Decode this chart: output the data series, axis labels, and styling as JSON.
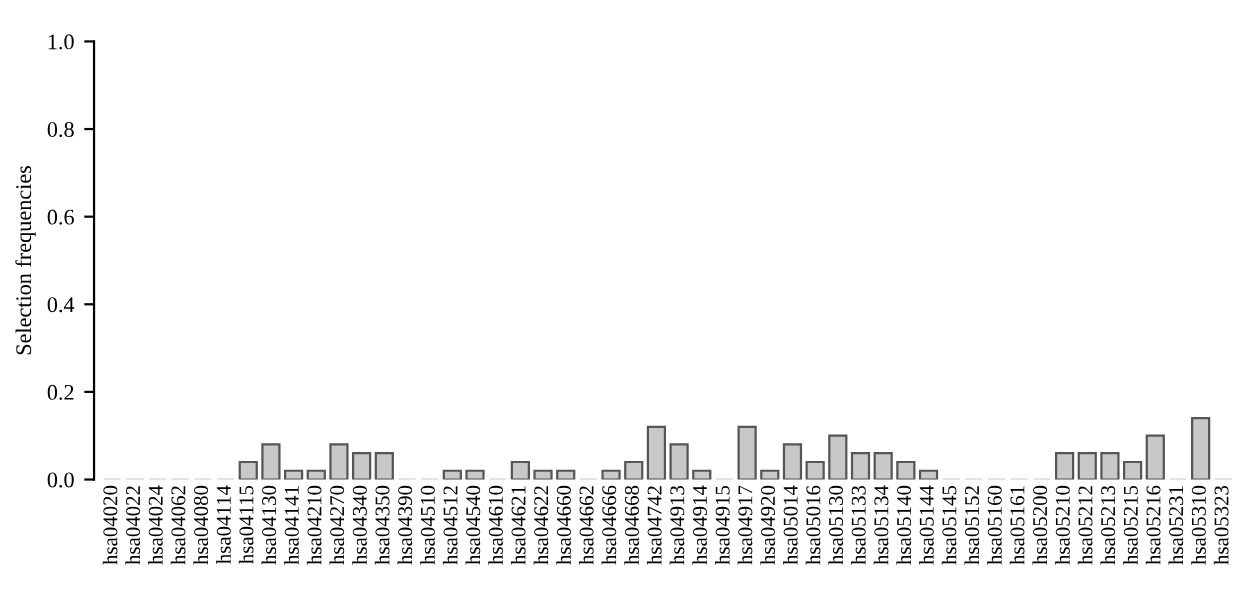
{
  "chart_data": {
    "type": "bar",
    "ylabel": "Selection frequencies",
    "categories": [
      "hsa04020",
      "hsa04022",
      "hsa04024",
      "hsa04062",
      "hsa04080",
      "hsa04114",
      "hsa04115",
      "hsa04130",
      "hsa04141",
      "hsa04210",
      "hsa04270",
      "hsa04340",
      "hsa04350",
      "hsa04390",
      "hsa04510",
      "hsa04512",
      "hsa04540",
      "hsa04610",
      "hsa04621",
      "hsa04622",
      "hsa04660",
      "hsa04662",
      "hsa04666",
      "hsa04668",
      "hsa04742",
      "hsa04913",
      "hsa04914",
      "hsa04915",
      "hsa04917",
      "hsa04920",
      "hsa05014",
      "hsa05016",
      "hsa05130",
      "hsa05133",
      "hsa05134",
      "hsa05140",
      "hsa05144",
      "hsa05145",
      "hsa05152",
      "hsa05160",
      "hsa05161",
      "hsa05200",
      "hsa05210",
      "hsa05212",
      "hsa05213",
      "hsa05215",
      "hsa05216",
      "hsa05231",
      "hsa05310",
      "hsa05323"
    ],
    "values": [
      0,
      0,
      0,
      0,
      0,
      0,
      0.04,
      0.08,
      0.02,
      0.02,
      0.08,
      0.06,
      0.06,
      0,
      0,
      0.02,
      0.02,
      0,
      0.04,
      0.02,
      0.02,
      0,
      0.02,
      0.04,
      0.12,
      0.08,
      0.02,
      0,
      0.12,
      0.02,
      0.08,
      0.04,
      0.1,
      0.06,
      0.06,
      0.04,
      0.02,
      0,
      0,
      0,
      0,
      0,
      0.06,
      0.06,
      0.06,
      0.04,
      0.1,
      0,
      0.14,
      0
    ],
    "color": "#c8c8c8",
    "ylim": [
      0,
      1.0
    ],
    "yticks": [
      {
        "value": 0,
        "label": "0.0"
      },
      {
        "value": 0.2,
        "label": "0.2"
      },
      {
        "value": 0.4,
        "label": "0.4"
      },
      {
        "value": 0.6,
        "label": "0.6"
      },
      {
        "value": 0.8,
        "label": "0.8"
      },
      {
        "value": 1.0,
        "label": "1.0"
      }
    ],
    "grid": false
  }
}
